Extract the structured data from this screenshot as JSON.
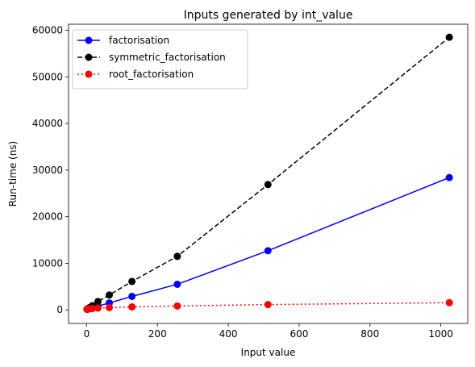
{
  "chart_data": {
    "type": "line",
    "title": "Inputs generated by int_value",
    "xlabel": "Input value",
    "ylabel": "Run-time (ns)",
    "xlim": [
      -51.05,
      1076.05
    ],
    "ylim": [
      -2900,
      61300
    ],
    "xticks": [
      0,
      200,
      400,
      600,
      800,
      1000
    ],
    "yticks": [
      0,
      10000,
      20000,
      30000,
      40000,
      50000,
      60000
    ],
    "grid": false,
    "legend": "top-left",
    "x": [
      1,
      2,
      4,
      8,
      16,
      32,
      64,
      128,
      256,
      512,
      1024
    ],
    "series": [
      {
        "name": "factorisation",
        "color": "#0000ff",
        "linestyle": "solid",
        "marker": "circle",
        "values": [
          120,
          150,
          200,
          300,
          500,
          800,
          1500,
          2900,
          5500,
          12700,
          28400
        ]
      },
      {
        "name": "symmetric_factorisation",
        "color": "#000000",
        "linestyle": "dashed",
        "marker": "circle",
        "values": [
          150,
          200,
          300,
          500,
          900,
          1800,
          3200,
          6100,
          11500,
          26900,
          58500
        ]
      },
      {
        "name": "root_factorisation",
        "color": "#ff0000",
        "linestyle": "dotted",
        "marker": "circle",
        "values": [
          150,
          180,
          200,
          250,
          300,
          400,
          500,
          650,
          850,
          1150,
          1550
        ]
      }
    ]
  }
}
